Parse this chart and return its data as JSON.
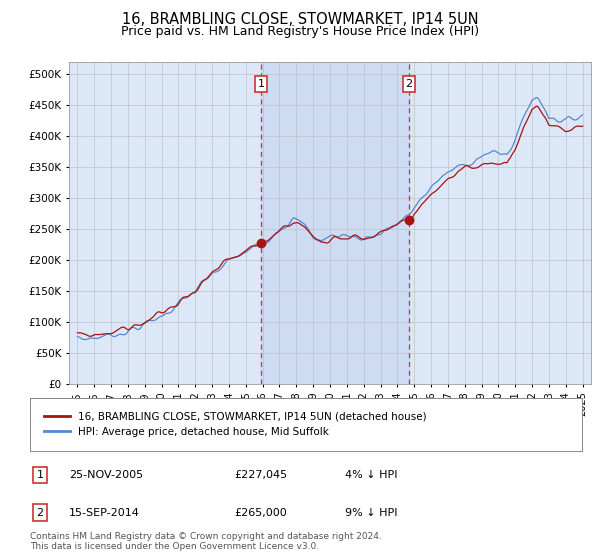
{
  "title": "16, BRAMBLING CLOSE, STOWMARKET, IP14 5UN",
  "subtitle": "Price paid vs. HM Land Registry's House Price Index (HPI)",
  "title_fontsize": 10.5,
  "subtitle_fontsize": 9,
  "plot_bg_color": "#dce8f8",
  "grid_color": "#bbbbbb",
  "sale1_date_num": 2005.9,
  "sale1_price": 227045,
  "sale1_label": "1",
  "sale2_date_num": 2014.7,
  "sale2_price": 265000,
  "sale2_label": "2",
  "hpi_line_color": "#5588cc",
  "price_line_color": "#aa1111",
  "dashed_line_color": "#cc3333",
  "shade_color": "#c8d8f0",
  "ylim_min": 0,
  "ylim_max": 520000,
  "xlim_min": 1994.5,
  "xlim_max": 2025.5,
  "legend1_label": "16, BRAMBLING CLOSE, STOWMARKET, IP14 5UN (detached house)",
  "legend2_label": "HPI: Average price, detached house, Mid Suffolk",
  "table_row1": [
    "1",
    "25-NOV-2005",
    "£227,045",
    "4% ↓ HPI"
  ],
  "table_row2": [
    "2",
    "15-SEP-2014",
    "£265,000",
    "9% ↓ HPI"
  ],
  "footnote": "Contains HM Land Registry data © Crown copyright and database right 2024.\nThis data is licensed under the Open Government Licence v3.0.",
  "yticks": [
    0,
    50000,
    100000,
    150000,
    200000,
    250000,
    300000,
    350000,
    400000,
    450000,
    500000
  ],
  "ytick_labels": [
    "£0",
    "£50K",
    "£100K",
    "£150K",
    "£200K",
    "£250K",
    "£300K",
    "£350K",
    "£400K",
    "£450K",
    "£500K"
  ],
  "xticks": [
    1995,
    1996,
    1997,
    1998,
    1999,
    2000,
    2001,
    2002,
    2003,
    2004,
    2005,
    2006,
    2007,
    2008,
    2009,
    2010,
    2011,
    2012,
    2013,
    2014,
    2015,
    2016,
    2017,
    2018,
    2019,
    2020,
    2021,
    2022,
    2023,
    2024,
    2025
  ]
}
